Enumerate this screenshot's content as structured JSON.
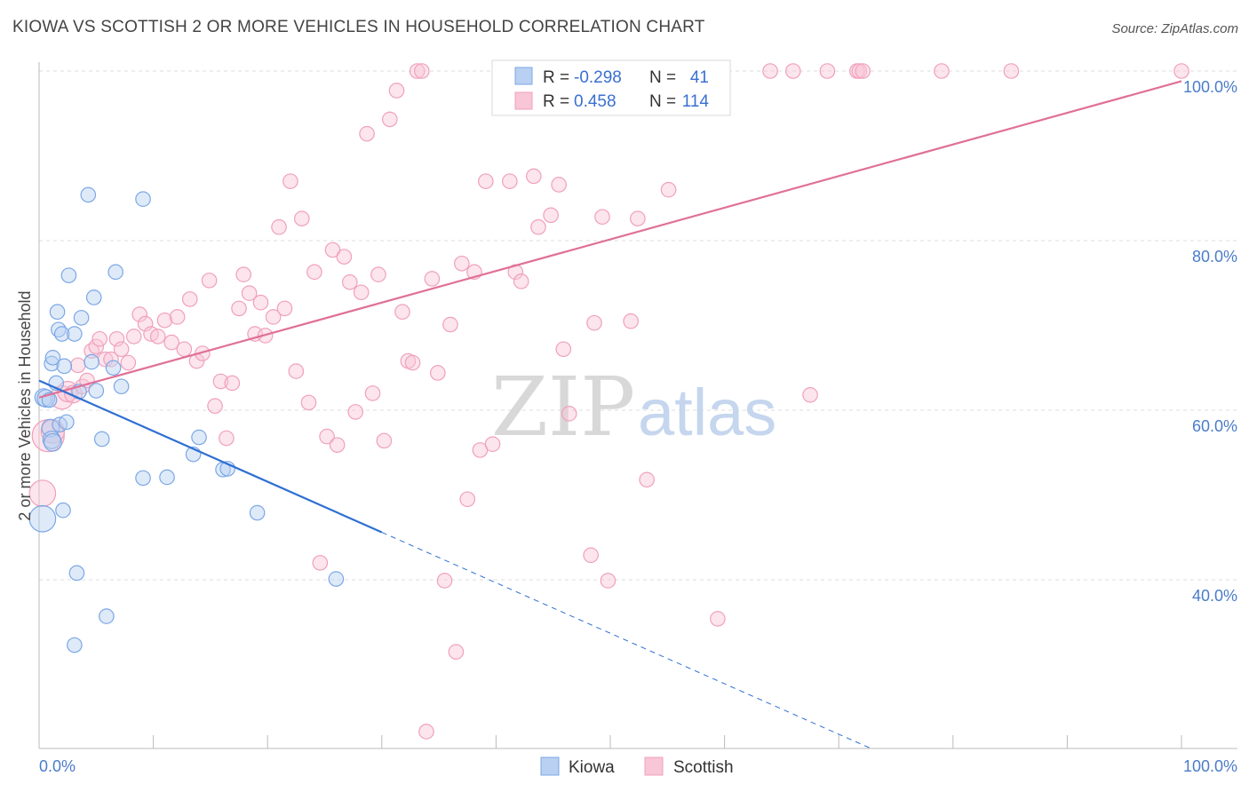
{
  "title": "KIOWA VS SCOTTISH 2 OR MORE VEHICLES IN HOUSEHOLD CORRELATION CHART",
  "source": "Source: ZipAtlas.com",
  "colors": {
    "kiowa": "#7aa7e6",
    "kiowa_line": "#2e6fd1",
    "scottish": "#f0a0bb",
    "scottish_line": "#e07097",
    "accent": "#4a7cc9"
  },
  "watermark": {
    "zip": "ZIP",
    "atlas": "atlas"
  },
  "legend_box": {
    "rows": [
      {
        "r_label": "R =",
        "r_value": "-0.298",
        "n_label": "N =",
        "n_value": "41"
      },
      {
        "r_label": "R =",
        "r_value": "0.458",
        "n_label": "N =",
        "n_value": "114"
      }
    ]
  },
  "bottom_legend": {
    "kiowa": "Kiowa",
    "scottish": "Scottish"
  },
  "chart_data": {
    "type": "scatter",
    "xlabel": "",
    "ylabel": "2 or more Vehicles in Household",
    "xlim": [
      0,
      100
    ],
    "ylim": [
      19,
      102
    ],
    "x_tick_labels": {
      "left": "0.0%",
      "right": "100.0%"
    },
    "y_ticks": [
      {
        "value": 100,
        "label": "100.0%"
      },
      {
        "value": 80,
        "label": "80.0%"
      },
      {
        "value": 60,
        "label": "60.0%"
      },
      {
        "value": 40,
        "label": "40.0%"
      }
    ],
    "grid": true,
    "series": [
      {
        "name": "Kiowa",
        "r": -0.298,
        "n": 41,
        "trend": {
          "x0": 0,
          "y0": 63.5,
          "x1": 30,
          "y1": 45.6,
          "dash_to_x": 73,
          "dash_to_y": 20.0
        },
        "points": [
          [
            0.3,
            47.2,
            18
          ],
          [
            0.4,
            61.5,
            12
          ],
          [
            0.6,
            61.4,
            12
          ],
          [
            0.9,
            61.2,
            10
          ],
          [
            1.0,
            57.9,
            12
          ],
          [
            1.1,
            56.5,
            12
          ],
          [
            1.2,
            56.2,
            12
          ],
          [
            1.1,
            65.5,
            10
          ],
          [
            1.2,
            66.2,
            10
          ],
          [
            1.5,
            63.2,
            10
          ],
          [
            1.6,
            71.6,
            10
          ],
          [
            1.7,
            69.5,
            10
          ],
          [
            1.8,
            58.3,
            10
          ],
          [
            2.0,
            69.0,
            10
          ],
          [
            2.2,
            65.2,
            10
          ],
          [
            2.1,
            48.2,
            10
          ],
          [
            2.4,
            58.6,
            10
          ],
          [
            2.6,
            75.9,
            10
          ],
          [
            3.1,
            32.3,
            10
          ],
          [
            3.1,
            69.0,
            10
          ],
          [
            3.3,
            40.8,
            10
          ],
          [
            3.5,
            62.2,
            10
          ],
          [
            3.7,
            70.9,
            10
          ],
          [
            4.3,
            85.4,
            10
          ],
          [
            4.6,
            65.7,
            10
          ],
          [
            4.8,
            73.3,
            10
          ],
          [
            5.0,
            62.3,
            10
          ],
          [
            5.5,
            56.6,
            10
          ],
          [
            5.9,
            35.7,
            10
          ],
          [
            6.5,
            65.0,
            10
          ],
          [
            6.7,
            76.3,
            10
          ],
          [
            7.2,
            62.8,
            10
          ],
          [
            9.1,
            52.0,
            10
          ],
          [
            9.1,
            84.9,
            10
          ],
          [
            11.2,
            52.1,
            10
          ],
          [
            13.5,
            54.8,
            10
          ],
          [
            14.0,
            56.8,
            10
          ],
          [
            16.1,
            53.0,
            10
          ],
          [
            16.5,
            53.1,
            10
          ],
          [
            19.1,
            47.9,
            10
          ],
          [
            26.0,
            40.1,
            10
          ]
        ]
      },
      {
        "name": "Scottish",
        "r": 0.458,
        "n": 114,
        "trend": {
          "x0": 0,
          "y0": 61.5,
          "x1": 100,
          "y1": 98.8
        },
        "points": [
          [
            0.3,
            50.2,
            18
          ],
          [
            0.8,
            57.0,
            22
          ],
          [
            1.2,
            57.5,
            16
          ],
          [
            2.0,
            61.5,
            16
          ],
          [
            2.5,
            62.2,
            14
          ],
          [
            3.0,
            61.9,
            12
          ],
          [
            3.4,
            65.3,
            10
          ],
          [
            3.8,
            62.8,
            10
          ],
          [
            4.2,
            63.5,
            10
          ],
          [
            4.6,
            67.0,
            10
          ],
          [
            5.0,
            67.5,
            10
          ],
          [
            5.3,
            68.4,
            10
          ],
          [
            5.8,
            66.0,
            10
          ],
          [
            6.3,
            66.0,
            10
          ],
          [
            6.8,
            68.4,
            10
          ],
          [
            7.2,
            67.2,
            10
          ],
          [
            7.8,
            65.6,
            10
          ],
          [
            8.3,
            68.7,
            10
          ],
          [
            8.8,
            71.3,
            10
          ],
          [
            9.3,
            70.2,
            10
          ],
          [
            9.8,
            69.0,
            10
          ],
          [
            10.4,
            68.7,
            10
          ],
          [
            11.0,
            70.6,
            10
          ],
          [
            11.6,
            68.0,
            10
          ],
          [
            12.1,
            71.0,
            10
          ],
          [
            12.7,
            67.2,
            10
          ],
          [
            13.2,
            73.1,
            10
          ],
          [
            13.8,
            65.8,
            10
          ],
          [
            14.3,
            66.7,
            10
          ],
          [
            14.9,
            75.3,
            10
          ],
          [
            15.4,
            60.5,
            10
          ],
          [
            15.9,
            63.4,
            10
          ],
          [
            16.4,
            56.7,
            10
          ],
          [
            16.9,
            63.2,
            10
          ],
          [
            17.5,
            72.0,
            10
          ],
          [
            17.9,
            76.0,
            10
          ],
          [
            18.4,
            73.8,
            10
          ],
          [
            18.9,
            69.0,
            10
          ],
          [
            19.4,
            72.7,
            10
          ],
          [
            19.8,
            68.8,
            10
          ],
          [
            20.5,
            71.0,
            10
          ],
          [
            21.0,
            81.6,
            10
          ],
          [
            21.5,
            72.0,
            10
          ],
          [
            22.0,
            87.0,
            10
          ],
          [
            22.5,
            64.6,
            10
          ],
          [
            23.0,
            82.6,
            10
          ],
          [
            23.6,
            60.9,
            10
          ],
          [
            24.1,
            76.3,
            10
          ],
          [
            24.6,
            42.0,
            10
          ],
          [
            25.2,
            56.9,
            10
          ],
          [
            25.7,
            78.9,
            10
          ],
          [
            26.1,
            55.9,
            10
          ],
          [
            26.7,
            78.1,
            10
          ],
          [
            27.2,
            75.1,
            10
          ],
          [
            27.7,
            59.8,
            10
          ],
          [
            28.2,
            73.9,
            10
          ],
          [
            28.7,
            92.6,
            10
          ],
          [
            29.2,
            62.0,
            10
          ],
          [
            29.7,
            76.0,
            10
          ],
          [
            30.2,
            56.4,
            10
          ],
          [
            30.7,
            94.3,
            10
          ],
          [
            31.3,
            97.7,
            10
          ],
          [
            31.8,
            71.6,
            10
          ],
          [
            32.3,
            65.8,
            10
          ],
          [
            32.7,
            65.6,
            10
          ],
          [
            33.1,
            100.0,
            10
          ],
          [
            33.5,
            100.0,
            10
          ],
          [
            33.9,
            22.1,
            10
          ],
          [
            34.4,
            75.5,
            10
          ],
          [
            34.9,
            64.4,
            10
          ],
          [
            35.5,
            39.9,
            10
          ],
          [
            36.0,
            70.1,
            10
          ],
          [
            36.5,
            31.5,
            10
          ],
          [
            37.0,
            77.3,
            10
          ],
          [
            37.5,
            49.5,
            10
          ],
          [
            38.1,
            76.3,
            10
          ],
          [
            38.6,
            55.3,
            10
          ],
          [
            39.1,
            87.0,
            10
          ],
          [
            39.7,
            56.0,
            10
          ],
          [
            40.7,
            100.0,
            10
          ],
          [
            41.2,
            87.0,
            10
          ],
          [
            41.7,
            76.3,
            10
          ],
          [
            42.2,
            75.2,
            10
          ],
          [
            42.6,
            100.0,
            10
          ],
          [
            43.3,
            87.6,
            10
          ],
          [
            43.7,
            81.6,
            10
          ],
          [
            44.2,
            100.0,
            10
          ],
          [
            44.8,
            83.0,
            10
          ],
          [
            45.5,
            86.6,
            10
          ],
          [
            45.9,
            67.2,
            10
          ],
          [
            46.4,
            59.6,
            10
          ],
          [
            47.0,
            100.0,
            10
          ],
          [
            47.5,
            95.8,
            10
          ],
          [
            48.3,
            42.9,
            10
          ],
          [
            48.6,
            70.3,
            10
          ],
          [
            49.3,
            82.8,
            10
          ],
          [
            49.8,
            39.9,
            10
          ],
          [
            50.7,
            100.0,
            10
          ],
          [
            51.8,
            70.5,
            10
          ],
          [
            52.4,
            82.6,
            10
          ],
          [
            53.2,
            51.8,
            10
          ],
          [
            55.1,
            86.0,
            10
          ],
          [
            59.0,
            100.0,
            10
          ],
          [
            59.4,
            35.4,
            10
          ],
          [
            64.0,
            100.0,
            10
          ],
          [
            66.0,
            100.0,
            10
          ],
          [
            67.5,
            61.8,
            10
          ],
          [
            69.0,
            100.0,
            10
          ],
          [
            71.6,
            100.0,
            10
          ],
          [
            71.8,
            100.0,
            10
          ],
          [
            72.1,
            100.0,
            10
          ],
          [
            79.0,
            100.0,
            10
          ],
          [
            85.1,
            100.0,
            10
          ],
          [
            100.0,
            100.0,
            10
          ]
        ]
      }
    ]
  }
}
